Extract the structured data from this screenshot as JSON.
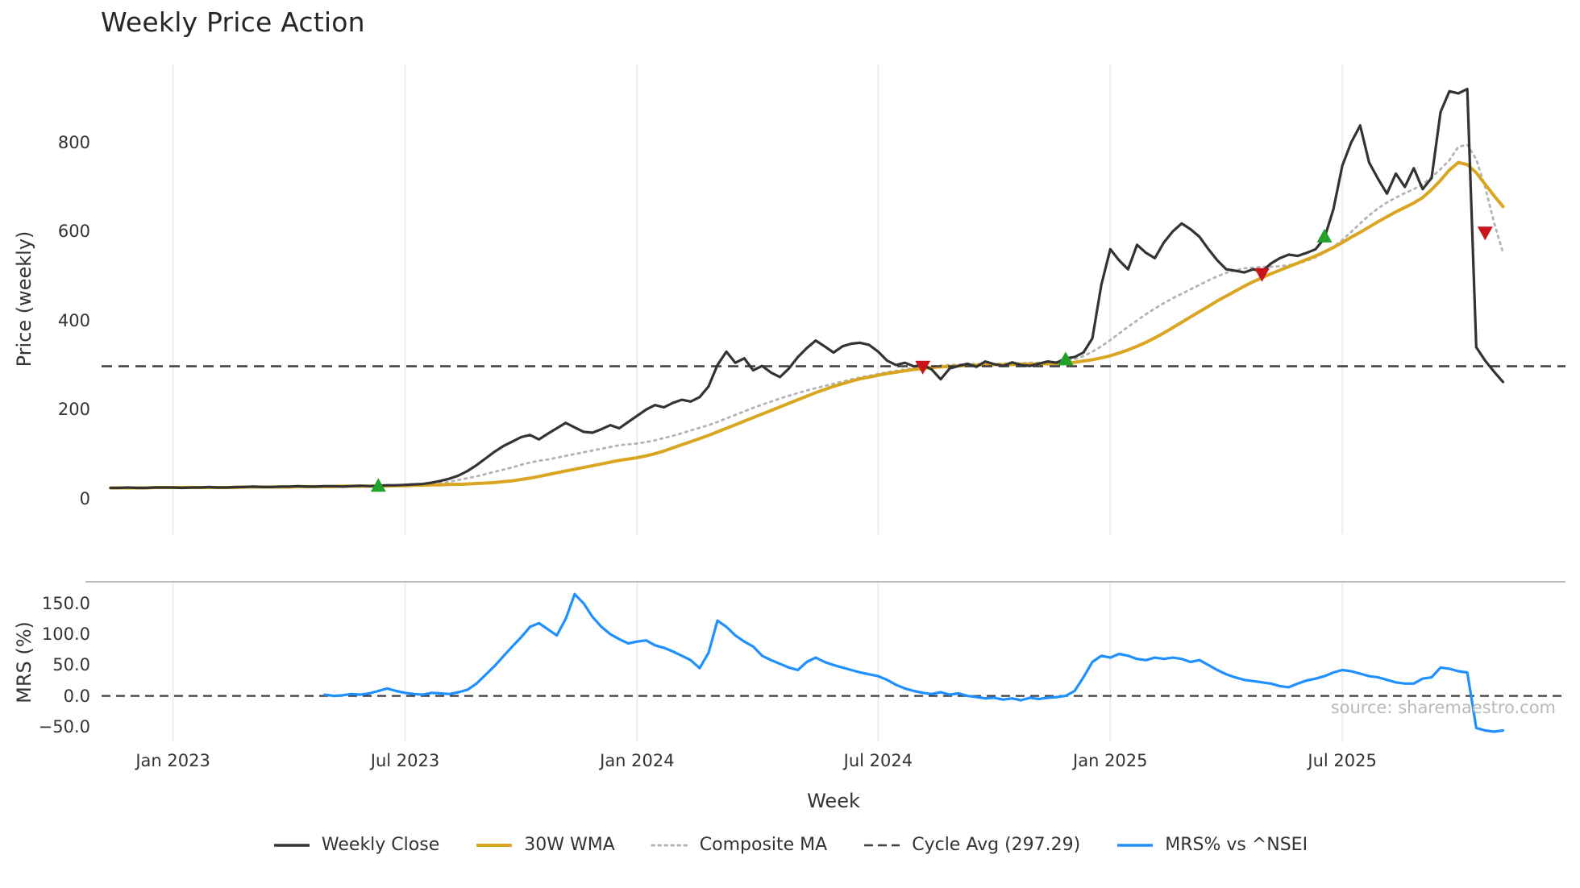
{
  "title": "Weekly Price Action",
  "axis": {
    "xlabel": "Week",
    "price_ylabel": "Price (weekly)",
    "mrs_ylabel": "MRS (%)"
  },
  "source_note": "source: sharemaestro.com",
  "legend": [
    {
      "label": "Weekly Close",
      "color": "#333333",
      "style": "solid",
      "width": 3.5
    },
    {
      "label": "30W WMA",
      "color": "#DAA520",
      "style": "solid",
      "width": 4
    },
    {
      "label": "Composite MA",
      "color": "#b3b3b3",
      "style": "dotted",
      "width": 3
    },
    {
      "label": "Cycle Avg (297.29)",
      "color": "#3d3d3d",
      "style": "dashed",
      "width": 2.6
    },
    {
      "label": "MRS% vs ^NSEI",
      "color": "#1E90FF",
      "style": "solid",
      "width": 3.5
    }
  ],
  "chart_data": {
    "type": "line",
    "x_unit": "week_index",
    "xlim": [
      -1,
      163
    ],
    "x_ticks": [
      {
        "week": 7,
        "label": "Jan 2023"
      },
      {
        "week": 33,
        "label": "Jul 2023"
      },
      {
        "week": 59,
        "label": "Jan 2024"
      },
      {
        "week": 86,
        "label": "Jul 2024"
      },
      {
        "week": 112,
        "label": "Jan 2025"
      },
      {
        "week": 138,
        "label": "Jul 2025"
      }
    ],
    "panels": {
      "price": {
        "ylim": [
          -80,
          975
        ],
        "grid": "vertical",
        "y_ticks": [
          {
            "value": 0,
            "label": "0"
          },
          {
            "value": 200,
            "label": "200"
          },
          {
            "value": 400,
            "label": "400"
          },
          {
            "value": 600,
            "label": "600"
          },
          {
            "value": 800,
            "label": "800"
          }
        ]
      },
      "mrs": {
        "ylim": [
          -75,
          185
        ],
        "grid": "vertical",
        "y_ticks": [
          {
            "value": -50,
            "label": "−50.0"
          },
          {
            "value": 0,
            "label": "0.0"
          },
          {
            "value": 50,
            "label": "50.0"
          },
          {
            "value": 100,
            "label": "100.0"
          },
          {
            "value": 150,
            "label": "150.0"
          }
        ]
      }
    },
    "cycle_avg": {
      "value": 297.29,
      "label": "Cycle Avg (297.29)"
    },
    "zero_line_mrs": 0,
    "colors": {
      "grid": "#e9e9e9",
      "spine": "#bdbdbd",
      "dashed": "#3d3d3d",
      "buy": "#22a12b",
      "sell": "#c8151c"
    },
    "marker_styles": {
      "buy": {
        "shape": "triangle-up",
        "color": "#22a12b"
      },
      "sell": {
        "shape": "triangle-down",
        "color": "#c8151c"
      }
    },
    "markers": [
      {
        "week": 30,
        "value": 28,
        "type": "buy"
      },
      {
        "week": 91,
        "value": 297,
        "type": "sell"
      },
      {
        "week": 107,
        "value": 312,
        "type": "buy"
      },
      {
        "week": 129,
        "value": 505,
        "type": "sell"
      },
      {
        "week": 136,
        "value": 588,
        "type": "buy"
      },
      {
        "week": 154,
        "value": 598,
        "type": "sell"
      }
    ],
    "series": [
      {
        "id": "weekly-close",
        "name": "Weekly Close",
        "panel": "price",
        "color": "#333333",
        "width": 3.2,
        "dash": "solid",
        "x_start_week": 0,
        "values": [
          24,
          24,
          25,
          24,
          24,
          25,
          25,
          25,
          24,
          25,
          25,
          26,
          25,
          25,
          26,
          26,
          27,
          26,
          26,
          27,
          27,
          28,
          27,
          27,
          28,
          28,
          27,
          28,
          29,
          28,
          29,
          30,
          30,
          31,
          32,
          33,
          36,
          40,
          45,
          52,
          62,
          75,
          90,
          105,
          118,
          128,
          138,
          143,
          133,
          146,
          158,
          170,
          160,
          150,
          148,
          156,
          165,
          158,
          172,
          186,
          200,
          210,
          205,
          215,
          222,
          218,
          228,
          252,
          300,
          330,
          305,
          315,
          288,
          298,
          283,
          273,
          292,
          318,
          338,
          355,
          342,
          328,
          342,
          348,
          350,
          345,
          330,
          310,
          300,
          305,
          297,
          300,
          290,
          268,
          292,
          298,
          303,
          296,
          308,
          302,
          298,
          306,
          300,
          298,
          303,
          308,
          305,
          315,
          318,
          328,
          360,
          480,
          560,
          535,
          515,
          570,
          552,
          540,
          575,
          600,
          618,
          605,
          588,
          560,
          535,
          515,
          512,
          508,
          515,
          510,
          528,
          540,
          548,
          545,
          552,
          560,
          585,
          650,
          748,
          800,
          838,
          755,
          718,
          685,
          730,
          700,
          742,
          695,
          720,
          868,
          915,
          910,
          920,
          340,
          310,
          285,
          262
        ]
      },
      {
        "id": "wma-30w",
        "name": "30W WMA",
        "panel": "price",
        "color": "#DAA520",
        "width": 4,
        "dash": "solid",
        "x_start_week": 0,
        "values": [
          24,
          24,
          24,
          24,
          24,
          25,
          25,
          25,
          25,
          25,
          25,
          25,
          25,
          25,
          25,
          26,
          26,
          26,
          26,
          26,
          26,
          27,
          27,
          27,
          27,
          27,
          28,
          28,
          28,
          28,
          28,
          28,
          29,
          29,
          30,
          30,
          31,
          31,
          32,
          32,
          33,
          34,
          35,
          36,
          38,
          40,
          43,
          46,
          50,
          54,
          58,
          62,
          66,
          70,
          74,
          78,
          82,
          86,
          89,
          92,
          96,
          101,
          107,
          114,
          121,
          128,
          135,
          142,
          150,
          158,
          166,
          174,
          182,
          190,
          198,
          206,
          214,
          222,
          230,
          238,
          245,
          252,
          258,
          264,
          269,
          273,
          277,
          281,
          284,
          287,
          290,
          292,
          294,
          296,
          297,
          298,
          299,
          300,
          300,
          301,
          301,
          301,
          302,
          302,
          302,
          303,
          303,
          304,
          306,
          309,
          312,
          316,
          321,
          327,
          334,
          342,
          351,
          361,
          372,
          384,
          396,
          408,
          420,
          432,
          444,
          455,
          466,
          477,
          487,
          496,
          505,
          513,
          521,
          529,
          537,
          545,
          554,
          564,
          575,
          587,
          598,
          610,
          622,
          633,
          644,
          654,
          664,
          676,
          694,
          715,
          738,
          755,
          750,
          732,
          706,
          680,
          656
        ]
      },
      {
        "id": "composite-ma",
        "name": "Composite MA",
        "panel": "price",
        "color": "#b3b3b3",
        "width": 2.8,
        "dash": "dotted",
        "x_start_week": 0,
        "values": [
          24,
          24,
          24,
          24,
          25,
          25,
          25,
          25,
          25,
          25,
          25,
          25,
          26,
          26,
          26,
          26,
          26,
          27,
          27,
          27,
          27,
          27,
          27,
          28,
          28,
          28,
          28,
          28,
          29,
          29,
          29,
          29,
          30,
          30,
          31,
          32,
          33,
          35,
          38,
          42,
          46,
          50,
          55,
          60,
          65,
          70,
          76,
          81,
          85,
          88,
          92,
          96,
          100,
          104,
          108,
          112,
          116,
          120,
          122,
          124,
          127,
          131,
          136,
          141,
          147,
          153,
          159,
          165,
          172,
          180,
          188,
          196,
          204,
          211,
          218,
          225,
          231,
          237,
          243,
          248,
          253,
          258,
          263,
          268,
          272,
          276,
          280,
          284,
          287,
          290,
          293,
          295,
          297,
          299,
          300,
          301,
          302,
          302,
          303,
          303,
          303,
          304,
          304,
          305,
          305,
          306,
          307,
          309,
          313,
          320,
          330,
          342,
          356,
          371,
          386,
          400,
          414,
          427,
          439,
          450,
          460,
          470,
          480,
          490,
          499,
          507,
          513,
          517,
          519,
          520,
          521,
          522,
          524,
          528,
          534,
          542,
          552,
          565,
          581,
          599,
          618,
          636,
          652,
          665,
          676,
          686,
          695,
          706,
          722,
          740,
          760,
          790,
          795,
          762,
          700,
          620,
          552
        ]
      },
      {
        "id": "mrs-pct",
        "name": "MRS% vs ^NSEI",
        "panel": "mrs",
        "color": "#1E90FF",
        "width": 3.2,
        "dash": "solid",
        "x_start_week": 24,
        "values": [
          2,
          0,
          1,
          3,
          2,
          4,
          8,
          12,
          8,
          5,
          3,
          2,
          5,
          4,
          3,
          6,
          10,
          20,
          34,
          48,
          64,
          80,
          95,
          112,
          118,
          108,
          98,
          125,
          165,
          150,
          128,
          112,
          100,
          92,
          85,
          88,
          90,
          82,
          78,
          72,
          65,
          58,
          45,
          70,
          122,
          112,
          98,
          88,
          80,
          65,
          58,
          52,
          46,
          42,
          55,
          62,
          55,
          50,
          46,
          42,
          38,
          35,
          32,
          26,
          18,
          12,
          8,
          5,
          3,
          6,
          2,
          4,
          0,
          -2,
          -4,
          -3,
          -6,
          -4,
          -7,
          -3,
          -5,
          -3,
          -2,
          0,
          8,
          30,
          55,
          65,
          62,
          68,
          65,
          60,
          58,
          62,
          60,
          62,
          60,
          55,
          58,
          50,
          42,
          35,
          30,
          26,
          24,
          22,
          20,
          16,
          14,
          20,
          25,
          28,
          32,
          38,
          42,
          40,
          36,
          32,
          30,
          26,
          22,
          20,
          20,
          28,
          30,
          46,
          44,
          40,
          38,
          -52,
          -56,
          -58,
          -56
        ]
      }
    ]
  }
}
